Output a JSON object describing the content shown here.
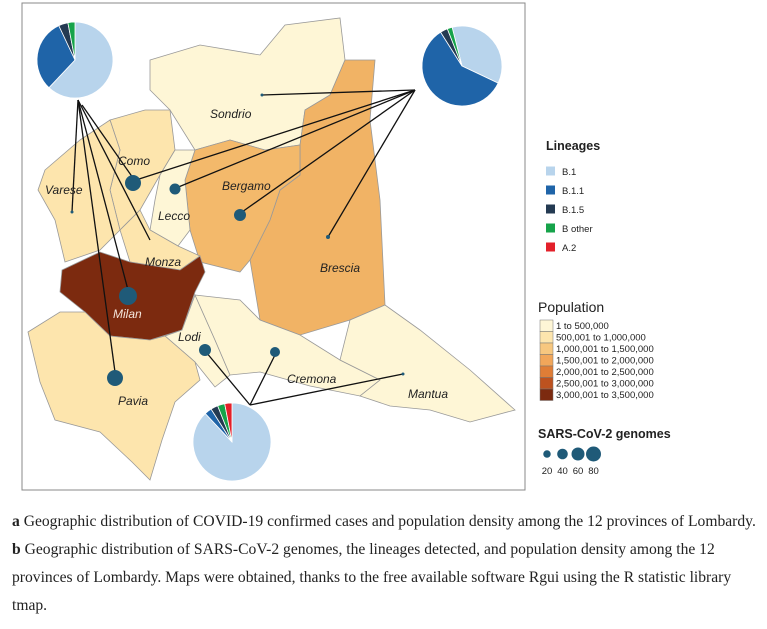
{
  "map": {
    "provinces": [
      "Sondrio",
      "Como",
      "Varese",
      "Lecco",
      "Bergamo",
      "Brescia",
      "Monza",
      "Milan",
      "Lodi",
      "Cremona",
      "Mantua",
      "Pavia"
    ],
    "pies": [
      {
        "values": [
          62,
          31,
          4,
          3
        ],
        "colors": [
          "#b8d4ec",
          "#1f64a8",
          "#243a52",
          "#16a34a"
        ]
      },
      {
        "values": [
          36,
          59,
          3,
          2
        ],
        "colors": [
          "#b8d4ec",
          "#1f64a8",
          "#243a52",
          "#16a34a"
        ]
      },
      {
        "values": [
          88,
          3,
          3,
          3,
          3
        ],
        "colors": [
          "#b8d4ec",
          "#1f64a8",
          "#243a52",
          "#16a34a",
          "#e3202a"
        ]
      }
    ]
  },
  "legend": {
    "lineages": {
      "title": "Lineages",
      "items": [
        "B.1",
        "B.1.1",
        "B.1.5",
        "B other",
        "A.2"
      ],
      "colors": [
        "#b8d4ec",
        "#1f64a8",
        "#243a52",
        "#16a34a",
        "#e3202a"
      ]
    },
    "population": {
      "title": "Population",
      "items": [
        "1 to 500,000",
        "500,001 to 1,000,000",
        "1,000,001 to 1,500,000",
        "1,500,001 to 2,000,000",
        "2,000,001 to 2,500,000",
        "2,500,001 to 3,000,000",
        "3,000,001 to 3,500,000"
      ],
      "colors": [
        "#fef6d6",
        "#fde5ad",
        "#f7c77f",
        "#f1a65a",
        "#df7d36",
        "#bd521f",
        "#7c2a0f"
      ]
    },
    "genomes": {
      "title": "SARS-CoV-2 genomes",
      "sizes": [
        20,
        40,
        60,
        80
      ]
    }
  },
  "caption": {
    "a": "a",
    "a_text": " Geographic distribution of COVID-19 confirmed cases and population density among the 12 provinces of Lombardy. ",
    "b": "b",
    "b_text": " Geographic distribution of SARS-CoV-2 genomes, the lineages detected, and population density among the 12 provinces of Lombardy. Maps were obtained, thanks to the free available software Rgui using the R statistic library tmap."
  }
}
